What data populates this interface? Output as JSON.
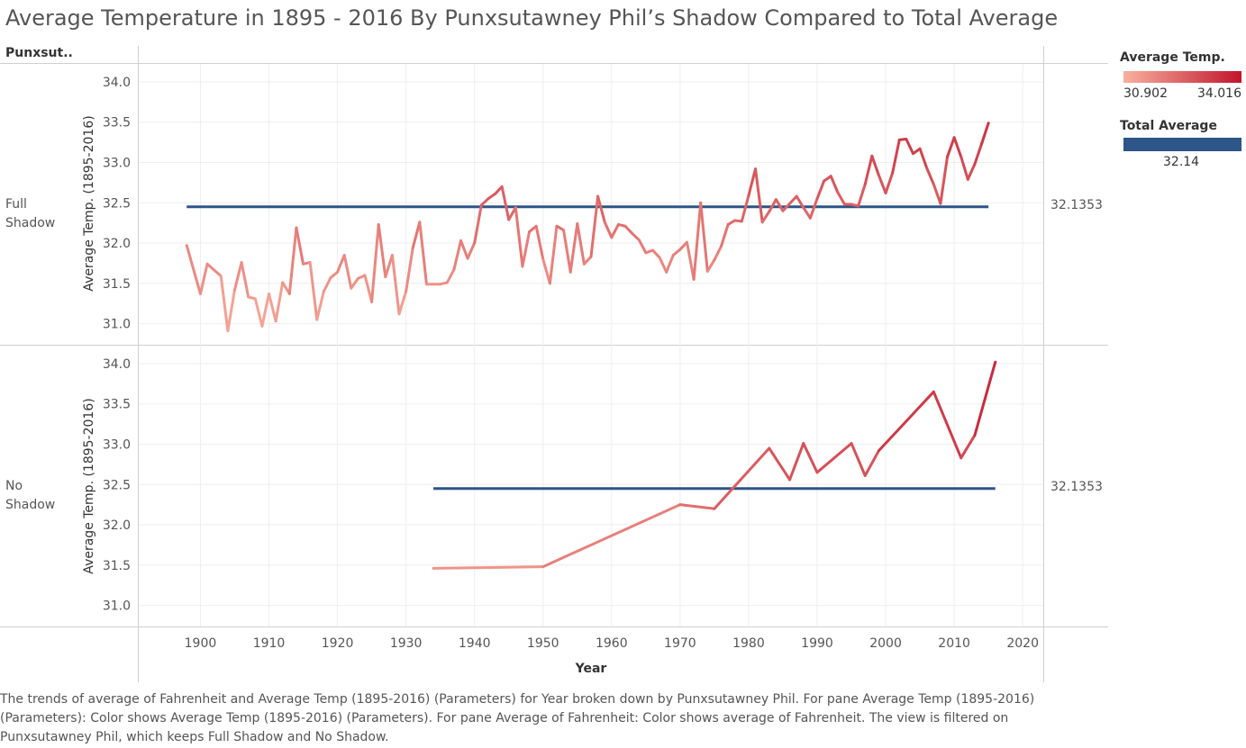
{
  "title": "Average Temperature in 1895 - 2016 By Punxsutawney Phil’s Shadow Compared to Total Average",
  "row_header": "Punxsut..",
  "rows": [
    {
      "label_line1": "Full",
      "label_line2": "Shadow",
      "ylabel": "Average Temp. (1895-2016)",
      "right_label": "32.1353"
    },
    {
      "label_line1": "No",
      "label_line2": "Shadow",
      "ylabel": "Average Temp. (1895-2016)",
      "right_label": "32.1353"
    }
  ],
  "legend": {
    "color_title": "Average Temp.",
    "color_min": "30.902",
    "color_max": "34.016",
    "color_low": "#f9b09e",
    "color_high": "#c1152c",
    "total_title": "Total Average",
    "total_value": "32.14",
    "total_color": "#2d5587"
  },
  "caption": "The trends of average of Fahrenheit and Average Temp (1895-2016) (Parameters) for Year broken down by Punxsutawney Phil.  For pane Average Temp (1895-2016) (Parameters):  Color shows Average Temp (1895-2016) (Parameters).  For pane Average of Fahrenheit:  Color shows average of Fahrenheit. The view is filtered on Punxsutawney Phil, which keeps Full Shadow and No Shadow.",
  "chart_data": {
    "type": "line",
    "xlabel": "Year",
    "xlim": [
      1891,
      2023
    ],
    "xticks": [
      1900,
      1910,
      1920,
      1930,
      1940,
      1950,
      1960,
      1970,
      1980,
      1990,
      2000,
      2010,
      2020
    ],
    "ylim": [
      30.85,
      34.1
    ],
    "yticks": [
      31.0,
      31.5,
      32.0,
      32.5,
      33.0,
      33.5,
      34.0
    ],
    "grid": true,
    "color_range": [
      30.902,
      34.016
    ],
    "panes": [
      {
        "name": "Full Shadow",
        "reference_line": {
          "y": 32.45,
          "x_start": 1898,
          "x_end": 2015
        },
        "x": [
          1898,
          1900,
          1901,
          1903,
          1904,
          1905,
          1906,
          1907,
          1908,
          1909,
          1910,
          1911,
          1912,
          1913,
          1914,
          1915,
          1916,
          1917,
          1918,
          1919,
          1920,
          1921,
          1922,
          1923,
          1924,
          1925,
          1926,
          1927,
          1928,
          1929,
          1930,
          1931,
          1932,
          1933,
          1934,
          1935,
          1936,
          1937,
          1938,
          1939,
          1940,
          1941,
          1942,
          1943,
          1944,
          1945,
          1946,
          1947,
          1948,
          1949,
          1950,
          1951,
          1952,
          1953,
          1954,
          1955,
          1956,
          1957,
          1958,
          1959,
          1960,
          1961,
          1962,
          1963,
          1964,
          1965,
          1966,
          1967,
          1968,
          1969,
          1970,
          1971,
          1972,
          1973,
          1974,
          1975,
          1976,
          1977,
          1978,
          1979,
          1980,
          1981,
          1982,
          1983,
          1984,
          1985,
          1986,
          1987,
          1988,
          1989,
          1990,
          1991,
          1992,
          1993,
          1994,
          1995,
          1996,
          1997,
          1998,
          1999,
          2000,
          2001,
          2002,
          2003,
          2004,
          2005,
          2006,
          2007,
          2008,
          2009,
          2010,
          2011,
          2012,
          2013,
          2014,
          2015
        ],
        "values": [
          31.97,
          31.37,
          31.74,
          31.59,
          30.91,
          31.42,
          31.76,
          31.33,
          31.31,
          30.97,
          31.37,
          31.03,
          31.51,
          31.37,
          32.19,
          31.74,
          31.76,
          31.05,
          31.4,
          31.57,
          31.64,
          31.85,
          31.44,
          31.56,
          31.6,
          31.27,
          32.23,
          31.58,
          31.85,
          31.12,
          31.4,
          31.94,
          32.26,
          31.49,
          31.49,
          31.49,
          31.51,
          31.67,
          32.03,
          31.81,
          32.0,
          32.47,
          32.55,
          32.61,
          32.7,
          32.29,
          32.44,
          31.71,
          32.14,
          32.21,
          31.8,
          31.5,
          32.21,
          32.16,
          31.64,
          32.24,
          31.74,
          31.83,
          32.58,
          32.26,
          32.07,
          32.23,
          32.21,
          32.12,
          32.04,
          31.88,
          31.91,
          31.82,
          31.64,
          31.85,
          31.92,
          32.01,
          31.55,
          32.5,
          31.65,
          31.79,
          31.96,
          32.23,
          32.28,
          32.27,
          32.59,
          32.92,
          32.26,
          32.39,
          32.54,
          32.4,
          32.49,
          32.58,
          32.44,
          32.31,
          32.55,
          32.77,
          32.83,
          32.63,
          32.48,
          32.48,
          32.46,
          32.73,
          33.08,
          32.84,
          32.62,
          32.87,
          33.28,
          33.29,
          33.11,
          33.17,
          32.93,
          32.73,
          32.49,
          33.07,
          33.31,
          33.07,
          32.79,
          32.98,
          33.23,
          33.49
        ]
      },
      {
        "name": "No Shadow",
        "reference_line": {
          "y": 32.45,
          "x_start": 1934,
          "x_end": 2016
        },
        "x": [
          1934,
          1950,
          1970,
          1975,
          1983,
          1986,
          1988,
          1990,
          1995,
          1997,
          1999,
          2007,
          2011,
          2013,
          2016
        ],
        "values": [
          31.46,
          31.48,
          32.25,
          32.2,
          32.95,
          32.56,
          33.01,
          32.65,
          33.01,
          32.61,
          32.92,
          33.65,
          32.83,
          33.11,
          34.02
        ]
      }
    ]
  }
}
